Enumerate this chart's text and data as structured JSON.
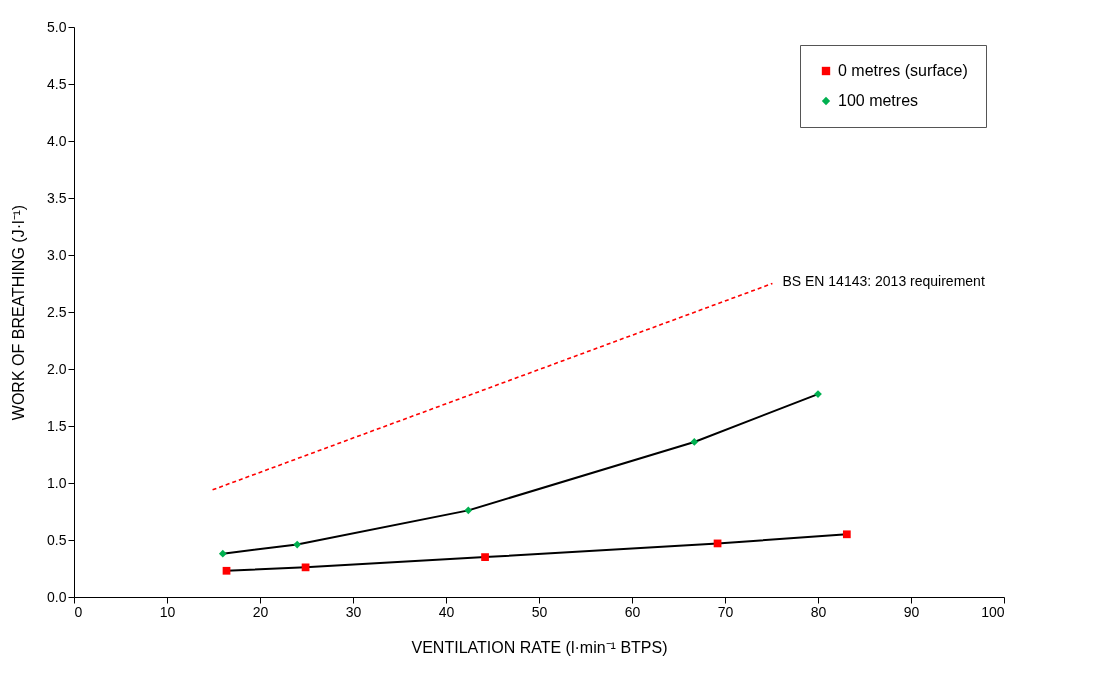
{
  "chart_data": {
    "type": "line",
    "xlabel": "VENTILATION RATE (l·min⁻¹ BTPS)",
    "ylabel": "WORK OF BREATHING (J·l⁻¹)",
    "series": [
      {
        "name": "0 metres (surface)",
        "color": "#ff0000",
        "marker": "square",
        "x": [
          16.4,
          24.9,
          44.2,
          69.2,
          83.1
        ],
        "values": [
          0.23,
          0.26,
          0.35,
          0.47,
          0.55
        ]
      },
      {
        "name": "100 metres",
        "color": "#00b050",
        "marker": "diamond",
        "x": [
          16.0,
          24.0,
          42.4,
          66.7,
          80.0
        ],
        "values": [
          0.38,
          0.46,
          0.76,
          1.36,
          1.78
        ]
      },
      {
        "name": "BS EN 14143: 2013 requirement",
        "color": "#ff0000",
        "marker": "none",
        "line_style": "dashed",
        "x": [
          14.9,
          75.1
        ],
        "values": [
          0.94,
          2.75
        ]
      }
    ],
    "xlim": [
      0,
      100
    ],
    "xticks": [
      0,
      10,
      20,
      30,
      40,
      50,
      60,
      70,
      80,
      90,
      100
    ],
    "ylim": [
      0,
      5
    ],
    "yticks": [
      {
        "value": 0,
        "label": "0.0"
      },
      {
        "value": 0.5,
        "label": "0.5"
      },
      {
        "value": 1,
        "label": "1.0"
      },
      {
        "value": 1.5,
        "label": "1.5"
      },
      {
        "value": 2,
        "label": "2.0"
      },
      {
        "value": 2.5,
        "label": "2.5"
      },
      {
        "value": 3,
        "label": "3.0"
      },
      {
        "value": 3.5,
        "label": "3.5"
      },
      {
        "value": 4,
        "label": "4.0"
      },
      {
        "value": 4.5,
        "label": "4.5"
      },
      {
        "value": 5,
        "label": "5.0"
      }
    ],
    "grid": false,
    "legend": "top right"
  }
}
